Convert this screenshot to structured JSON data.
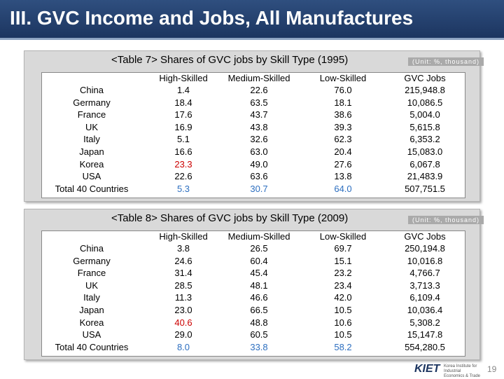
{
  "header": {
    "title": "III. GVC Income and Jobs, All Manufactures"
  },
  "tables": [
    {
      "caption": "<Table 7> Shares of GVC jobs by Skill Type (1995)",
      "unit": "(Unit: %, thousand)",
      "columns": [
        "High-Skilled",
        "Medium-Skilled",
        "Low-Skilled",
        "GVC Jobs"
      ],
      "rows": [
        {
          "label": "China",
          "values": [
            "1.4",
            "22.6",
            "76.0",
            "215,948.8"
          ]
        },
        {
          "label": "Germany",
          "values": [
            "18.4",
            "63.5",
            "18.1",
            "10,086.5"
          ]
        },
        {
          "label": "France",
          "values": [
            "17.6",
            "43.7",
            "38.6",
            "5,004.0"
          ]
        },
        {
          "label": "UK",
          "values": [
            "16.9",
            "43.8",
            "39.3",
            "5,615.8"
          ]
        },
        {
          "label": "Italy",
          "values": [
            "5.1",
            "32.6",
            "62.3",
            "6,353.2"
          ]
        },
        {
          "label": "Japan",
          "values": [
            "16.6",
            "63.0",
            "20.4",
            "15,083.0"
          ]
        },
        {
          "label": "Korea",
          "values": [
            "23.3",
            "49.0",
            "27.6",
            "6,067.8"
          ]
        },
        {
          "label": "USA",
          "values": [
            "22.6",
            "63.6",
            "13.8",
            "21,483.9"
          ]
        },
        {
          "label": "Total 40 Countries",
          "values": [
            "5.3",
            "30.7",
            "64.0",
            "507,751.5"
          ]
        }
      ]
    },
    {
      "caption": "<Table 8> Shares of GVC jobs by Skill Type (2009)",
      "unit": "(Unit: %, thousand)",
      "columns": [
        "High-Skilled",
        "Medium-Skilled",
        "Low-Skilled",
        "GVC Jobs"
      ],
      "rows": [
        {
          "label": "China",
          "values": [
            "3.8",
            "26.5",
            "69.7",
            "250,194.8"
          ]
        },
        {
          "label": "Germany",
          "values": [
            "24.6",
            "60.4",
            "15.1",
            "10,016.8"
          ]
        },
        {
          "label": "France",
          "values": [
            "31.4",
            "45.4",
            "23.2",
            "4,766.7"
          ]
        },
        {
          "label": "UK",
          "values": [
            "28.5",
            "48.1",
            "23.4",
            "3,713.3"
          ]
        },
        {
          "label": "Italy",
          "values": [
            "11.3",
            "46.6",
            "42.0",
            "6,109.4"
          ]
        },
        {
          "label": "Japan",
          "values": [
            "23.0",
            "66.5",
            "10.5",
            "10,036.4"
          ]
        },
        {
          "label": "Korea",
          "values": [
            "40.6",
            "48.8",
            "10.6",
            "5,308.2"
          ]
        },
        {
          "label": "USA",
          "values": [
            "29.0",
            "60.5",
            "10.5",
            "15,147.8"
          ]
        },
        {
          "label": "Total 40 Countries",
          "values": [
            "8.0",
            "33.8",
            "58.2",
            "554,280.5"
          ]
        }
      ]
    }
  ],
  "footer": {
    "logo": "KIET",
    "logo_sub": "Korea Institute for Industrial Economics & Trade",
    "page_number": "19"
  },
  "colors": {
    "title_bar": "#1c3560",
    "highlight_red": "#cc0000",
    "highlight_blue": "#2d6fc0"
  }
}
